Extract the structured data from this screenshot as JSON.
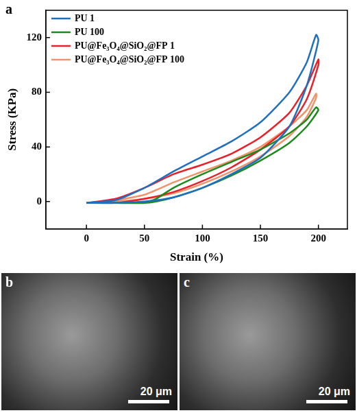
{
  "chart_panel": "a",
  "chart_data": {
    "type": "line",
    "x_label": "Strain (%)",
    "y_label": "Stress (KPa)",
    "xlim": [
      -35,
      225
    ],
    "xticks": [
      0,
      50,
      100,
      150,
      200
    ],
    "ylim": [
      -20,
      140
    ],
    "yticks": [
      0,
      40,
      80,
      120
    ],
    "grid": false,
    "legend": "top-left",
    "series": [
      {
        "name": "PU 1",
        "color": "#1f6fc0",
        "x": [
          0,
          25,
          50,
          75,
          100,
          125,
          150,
          175,
          190,
          198,
          200,
          190,
          175,
          150,
          125,
          100,
          75,
          50,
          25,
          0
        ],
        "values": [
          -1,
          1,
          10,
          22,
          33,
          44,
          58,
          80,
          102,
          122,
          118,
          85,
          55,
          32,
          20,
          10,
          3,
          0,
          -1,
          -1
        ]
      },
      {
        "name": "PU 100",
        "color": "#1a8a1a",
        "x": [
          0,
          25,
          50,
          60,
          75,
          100,
          125,
          150,
          175,
          190,
          198,
          200,
          190,
          175,
          150,
          125,
          100,
          75,
          60,
          50,
          25,
          0
        ],
        "values": [
          -1,
          -1,
          -1,
          2,
          10,
          20,
          29,
          38,
          50,
          60,
          69,
          67,
          55,
          43,
          30,
          19,
          10,
          3,
          0,
          -1,
          -1,
          -1
        ]
      },
      {
        "name": "PU@Fe₃O₄@SiO₂@FP 1",
        "color": "#e8202a",
        "x": [
          0,
          25,
          50,
          75,
          100,
          125,
          150,
          175,
          190,
          200,
          200,
          190,
          175,
          150,
          125,
          100,
          75,
          50,
          25,
          0
        ],
        "values": [
          -1,
          2,
          10,
          20,
          27,
          35,
          47,
          65,
          85,
          104,
          100,
          75,
          55,
          38,
          25,
          15,
          7,
          2,
          -1,
          -1
        ]
      },
      {
        "name": "PU@Fe₃O₄@SiO₂@FP 100",
        "color": "#f0926a",
        "x": [
          0,
          25,
          50,
          75,
          100,
          125,
          150,
          175,
          190,
          198,
          198,
          190,
          175,
          150,
          125,
          100,
          75,
          50,
          25,
          0
        ],
        "values": [
          -1,
          1,
          5,
          14,
          22,
          30,
          40,
          55,
          67,
          79,
          76,
          62,
          48,
          33,
          22,
          13,
          6,
          2,
          0,
          -1
        ]
      }
    ]
  },
  "images": [
    {
      "panel": "b",
      "scale_bar": "20 μm"
    },
    {
      "panel": "c",
      "scale_bar": "20 μm"
    }
  ]
}
